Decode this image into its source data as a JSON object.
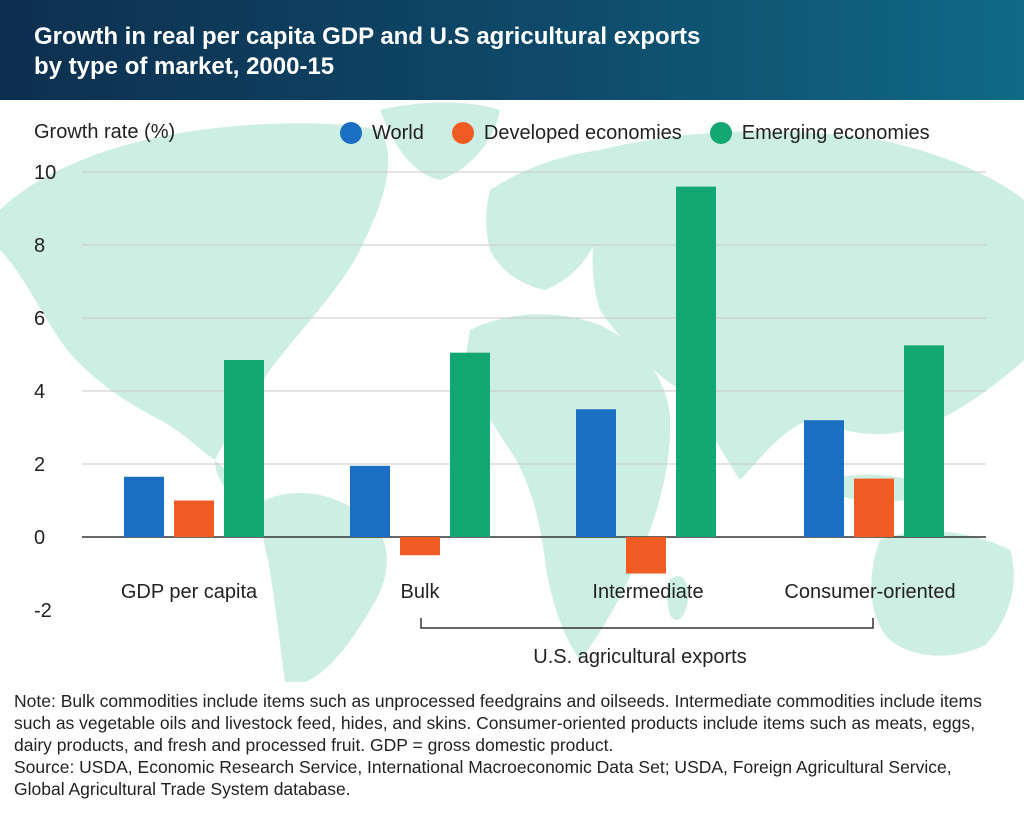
{
  "header": {
    "title_line1": "Growth in real per capita GDP and U.S agricultural exports",
    "title_line2": "by type of market, 2000-15"
  },
  "colors": {
    "world": "#1a6fc2",
    "developed": "#f05a23",
    "emerging": "#13a873",
    "map": "#cdeee3",
    "title_bg": "#0f4566"
  },
  "chart_data": {
    "type": "bar",
    "title": "Growth in real per capita GDP and U.S agricultural exports by type of market, 2000-15",
    "ylabel": "Growth rate (%)",
    "xlabel": "",
    "ylim": [
      -2,
      10
    ],
    "yticks": [
      -2,
      0,
      2,
      4,
      6,
      8,
      10
    ],
    "grid": true,
    "legend_position": "top",
    "categories": [
      "GDP per capita",
      "Bulk",
      "Intermediate",
      "Consumer-oriented"
    ],
    "series": [
      {
        "name": "World",
        "values": [
          1.65,
          1.95,
          3.5,
          3.2
        ]
      },
      {
        "name": "Developed economies",
        "values": [
          1.0,
          -0.5,
          -1.0,
          1.6
        ]
      },
      {
        "name": "Emerging economies",
        "values": [
          4.85,
          5.05,
          9.6,
          5.25
        ]
      }
    ],
    "bracket_label": "U.S. agricultural exports"
  },
  "notes": {
    "note": "Note: Bulk commodities include items such as unprocessed feedgrains and oilseeds. Intermediate commodities include items such as vegetable oils and livestock feed, hides, and skins. Consumer-oriented products include items such as meats, eggs, dairy products, and fresh and processed fruit. GDP = gross domestic product.",
    "source": "Source: USDA, Economic Research Service, International Macroeconomic Data Set; USDA, Foreign Agricultural Service, Global Agricultural Trade System database."
  }
}
